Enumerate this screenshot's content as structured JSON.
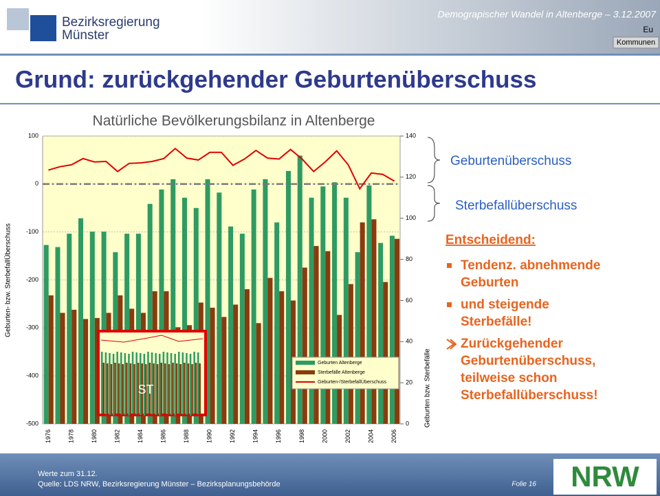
{
  "header": {
    "org_line1": "Bezirksregierung",
    "org_line2": "Münster",
    "event": "Demograpischer Wandel in Altenberge – 3.12.2007",
    "tag": "Eu",
    "button": "Kommunen"
  },
  "title": "Grund: zurückgehender Geburtenüberschuss",
  "chart_data": {
    "type": "bar",
    "title": "Natürliche Bevölkerungsbilanz in Altenberge",
    "ylabel": "Geburten- bzw. SterbefallÜberschuss",
    "y2label": "Geburten bzw. Sterbefälle",
    "categories": [
      "1976",
      "1977",
      "1978",
      "1979",
      "1980",
      "1981",
      "1982",
      "1983",
      "1984",
      "1985",
      "1986",
      "1987",
      "1988",
      "1989",
      "1990",
      "1991",
      "1992",
      "1993",
      "1994",
      "1995",
      "1996",
      "1997",
      "1998",
      "1999",
      "2000",
      "2001",
      "2002",
      "2003",
      "2004",
      "2005",
      "2006"
    ],
    "series": [
      {
        "name": "Geburten Altenberge",
        "type": "bar",
        "axis": "y2",
        "color": "#2e9b62",
        "values": [
          87,
          86,
          92.5,
          100,
          93.5,
          93.5,
          83.5,
          92.5,
          92.5,
          107,
          114,
          119,
          110,
          105,
          119,
          112.5,
          96,
          92.5,
          114,
          119,
          98,
          123,
          130.5,
          110,
          115.5,
          117.5,
          110,
          83.5,
          116,
          88,
          91.5
        ]
      },
      {
        "name": "Sterbefälle Altenberge",
        "type": "bar",
        "axis": "y2",
        "color": "#8b3a0e",
        "values": [
          62.5,
          54,
          55.5,
          51,
          51.5,
          54,
          62.5,
          56,
          54,
          64.5,
          64.5,
          47,
          48,
          59,
          56.5,
          52,
          58,
          65.5,
          49,
          71,
          64.5,
          60,
          76,
          86.5,
          84,
          53,
          68,
          98,
          99.5,
          69,
          90
        ]
      },
      {
        "name": "Geburten-/SterbefallÜberschuss",
        "type": "line",
        "color": "#e00000",
        "values": [
          29,
          36,
          40,
          53,
          46,
          47,
          26,
          43,
          44,
          47,
          53,
          74,
          54,
          50,
          66,
          66,
          39,
          52,
          70,
          54,
          52,
          72,
          52,
          26,
          46,
          69,
          40,
          -10,
          23,
          20,
          6
        ]
      }
    ],
    "ylim": [
      -500,
      100
    ],
    "yticks": [
      -500,
      -400,
      -300,
      -200,
      -100,
      0,
      100
    ],
    "y2lim": [
      0,
      140
    ],
    "y2ticks": [
      0,
      20,
      40,
      60,
      80,
      100,
      120,
      140
    ],
    "grid": true,
    "inset_label": "ST"
  },
  "annotations": {
    "upper": "Geburtenüberschuss",
    "lower": "Sterbefallüberschuss"
  },
  "bullets": {
    "heading": "Entscheidend:",
    "items": [
      [
        "Tendenz. abnehmende",
        "Geburten"
      ],
      [
        "und steigende",
        "Sterbefälle!"
      ],
      [
        "Zurückgehender",
        "Geburtenüberschuss,",
        "teilweise schon",
        "Sterbefallüberschuss!"
      ]
    ]
  },
  "footer": {
    "line1": "Werte zum 31.12.",
    "line2": "Quelle: LDS NRW, Bezirksregierung Münster – Bezirksplanungsbehörde",
    "slide": "Folie 16",
    "logo": "NRW"
  }
}
